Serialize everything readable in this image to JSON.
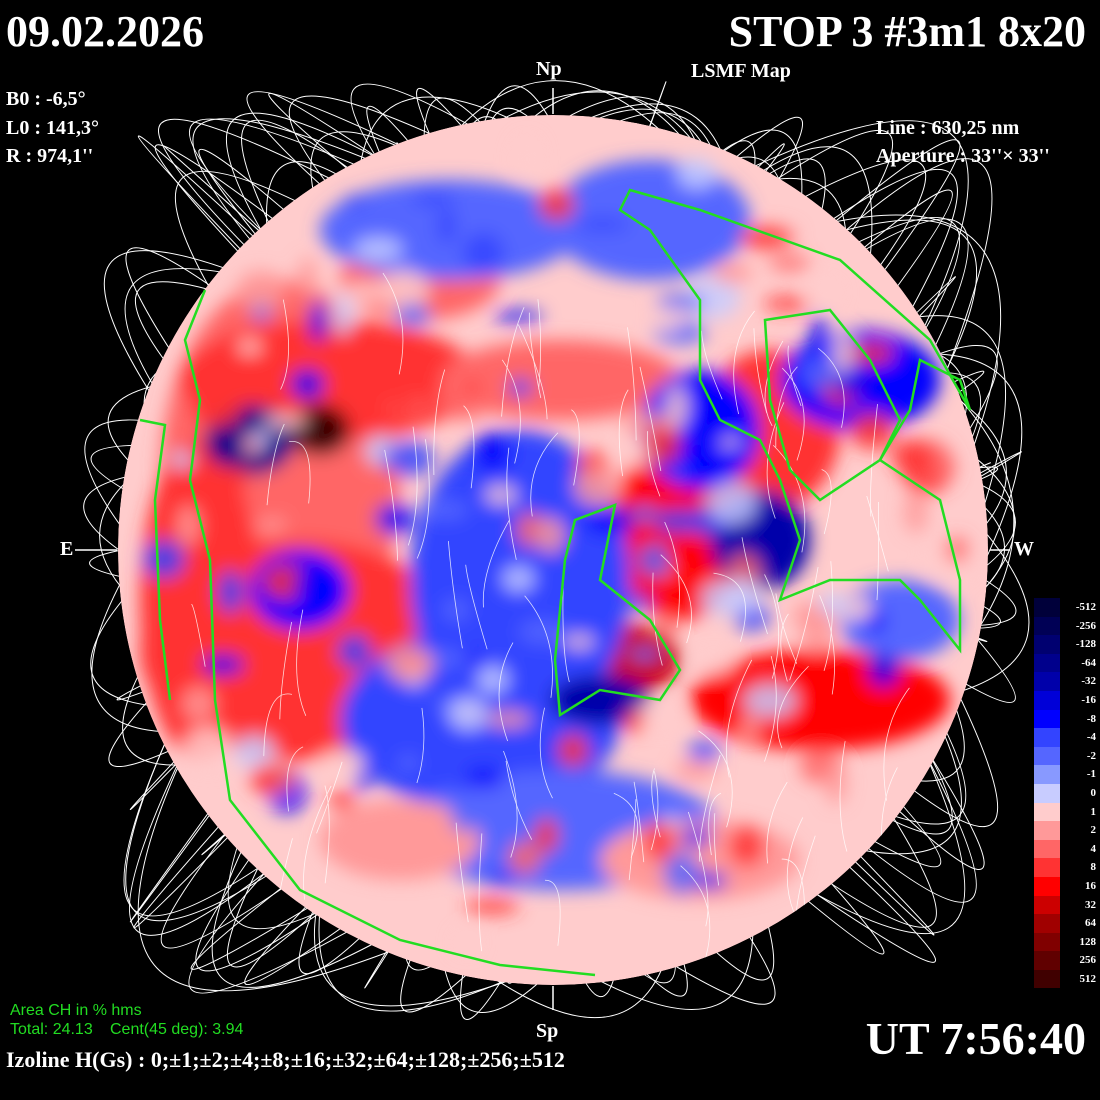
{
  "header": {
    "date": "09.02.2026",
    "title": "STOP 3 #3m1 8x20",
    "subtitle": "LSMF  Map"
  },
  "params": {
    "b0": "B0 : -6,5°",
    "l0": "L0 : 141,3°",
    "r": "R  : 974,1''"
  },
  "instrument": {
    "line": "Line :  630,25 nm",
    "aperture": "Aperture : 33''× 33''"
  },
  "poles": {
    "north": "Np",
    "south": "Sp",
    "east": "E",
    "west": "W"
  },
  "coronal_hole": {
    "heading": "Area CH in % hms",
    "total": "Total: 24.13",
    "central": "Cent(45 deg): 3.94",
    "contour_color": "#22dd22"
  },
  "time": "UT 7:56:40",
  "isolines": "Izoline H(Gs) : 0;±1;±2;±4;±8;±16;±32;±64;±128;±256;±512",
  "colorbar": {
    "labels": [
      "-512",
      "-256",
      "-128",
      "-64",
      "-32",
      "-16",
      "-8",
      "-4",
      "-2",
      "-1",
      "0",
      "1",
      "2",
      "4",
      "8",
      "16",
      "32",
      "64",
      "128",
      "256",
      "512"
    ],
    "colors": [
      "#00003a",
      "#000055",
      "#000070",
      "#00008c",
      "#0000aa",
      "#0000d8",
      "#0000ff",
      "#3344ff",
      "#5566ff",
      "#8899ff",
      "#c8ccff",
      "#ffcccc",
      "#ff9999",
      "#ff6666",
      "#ff3333",
      "#ff0000",
      "#cc0000",
      "#a00000",
      "#800000",
      "#600000",
      "#400000"
    ]
  }
}
